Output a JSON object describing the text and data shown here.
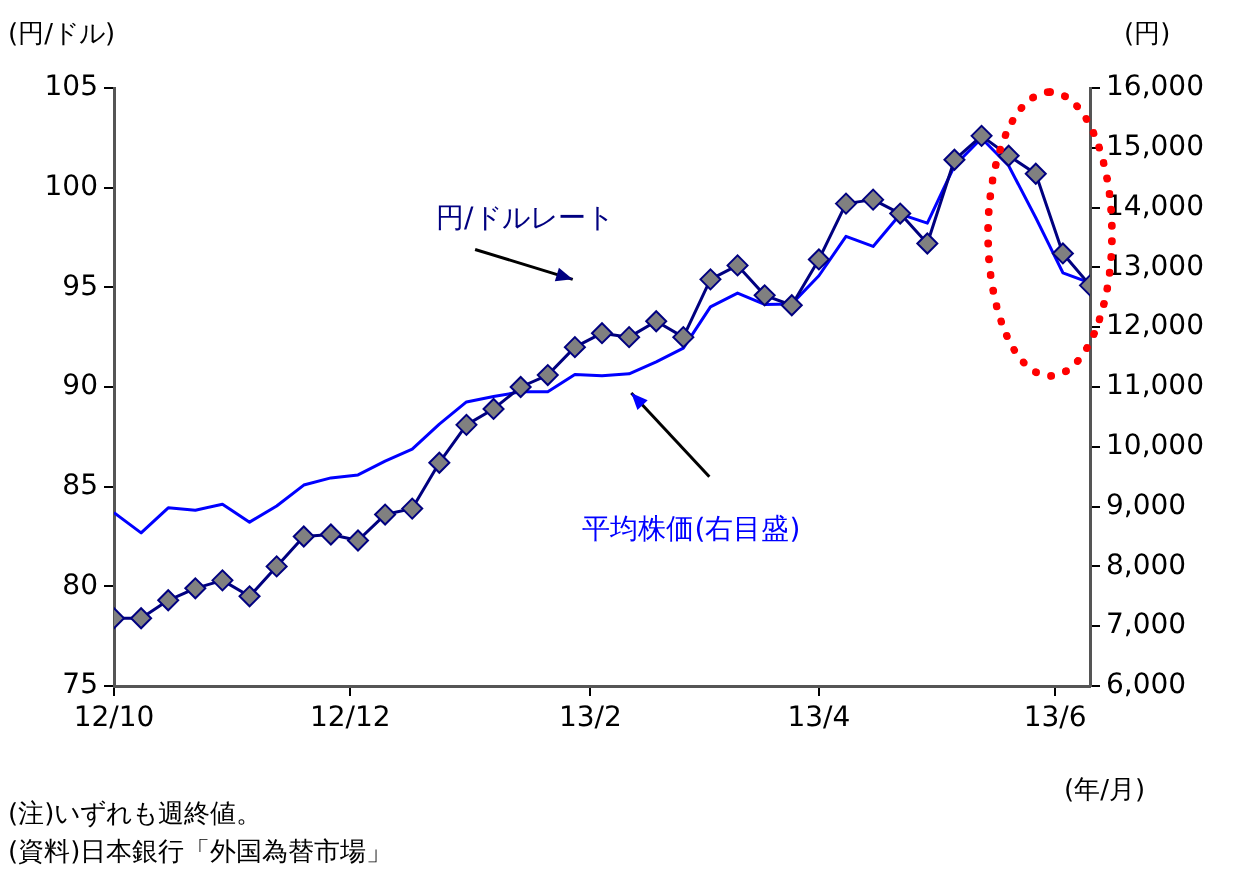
{
  "chart_data": {
    "type": "line",
    "ylabel": "(円/ドル)",
    "y2label": "(円)",
    "xlabel": "(年/月)",
    "annotations": [
      "(注)いずれも週終値。",
      "(資料)日本銀行「外国為替市場」"
    ],
    "x": [
      "2012-10-01",
      "2012-10-08",
      "2012-10-15",
      "2012-10-22",
      "2012-10-29",
      "2012-11-05",
      "2012-11-12",
      "2012-11-19",
      "2012-11-26",
      "2012-12-03",
      "2012-12-10",
      "2012-12-17",
      "2012-12-24",
      "2012-12-31",
      "2013-01-07",
      "2013-01-14",
      "2013-01-21",
      "2013-01-28",
      "2013-02-04",
      "2013-02-11",
      "2013-02-18",
      "2013-02-25",
      "2013-03-04",
      "2013-03-11",
      "2013-03-18",
      "2013-03-25",
      "2013-04-01",
      "2013-04-08",
      "2013-04-15",
      "2013-04-22",
      "2013-04-29",
      "2013-05-06",
      "2013-05-13",
      "2013-05-20",
      "2013-05-27",
      "2013-06-03",
      "2013-06-10"
    ],
    "series": [
      {
        "name": "円/ドルレート",
        "color": "#000080",
        "marker": "diamond",
        "values": [
          78.4,
          78.4,
          79.3,
          79.9,
          80.3,
          79.5,
          81.0,
          82.5,
          82.6,
          82.3,
          83.6,
          83.9,
          86.2,
          88.1,
          88.9,
          90.0,
          90.6,
          92.0,
          92.7,
          92.5,
          93.3,
          92.5,
          95.4,
          96.1,
          94.6,
          94.1,
          96.4,
          99.2,
          99.4,
          98.7,
          97.2,
          101.4,
          102.6,
          101.6,
          100.7,
          96.7,
          95.1
        ]
      },
      {
        "name": "平均株価(右目盛)",
        "color": "#0000ff",
        "axis": "y2",
        "marker": "none",
        "values": [
          8900,
          8560,
          8980,
          8940,
          9040,
          8740,
          9010,
          9360,
          9480,
          9530,
          9760,
          9960,
          10380,
          10750,
          10840,
          10920,
          10920,
          11210,
          11190,
          11220,
          11420,
          11650,
          12340,
          12570,
          12380,
          12390,
          12860,
          13520,
          13350,
          13890,
          13740,
          14700,
          15160,
          14700,
          13830,
          12910,
          12740
        ]
      }
    ],
    "xlim": [
      "2012-10-01",
      "2013-06-10"
    ],
    "xticks": [
      {
        "value": "2012-10-01",
        "label": "12/10"
      },
      {
        "value": "2012-12-01",
        "label": "12/12"
      },
      {
        "value": "2013-02-01",
        "label": "13/2"
      },
      {
        "value": "2013-04-01",
        "label": "13/4"
      },
      {
        "value": "2013-06-01",
        "label": "13/6"
      }
    ],
    "ylim": [
      75,
      105
    ],
    "yticks": [
      75,
      80,
      85,
      90,
      95,
      100,
      105
    ],
    "y2lim": [
      6000,
      16000
    ],
    "y2ticks": [
      {
        "value": 6000,
        "label": "6,000"
      },
      {
        "value": 7000,
        "label": "7,000"
      },
      {
        "value": 8000,
        "label": "8,000"
      },
      {
        "value": 9000,
        "label": "9,000"
      },
      {
        "value": 10000,
        "label": "10,000"
      },
      {
        "value": 11000,
        "label": "11,000"
      },
      {
        "value": 12000,
        "label": "12,000"
      },
      {
        "value": 13000,
        "label": "13,000"
      },
      {
        "value": 14000,
        "label": "14,000"
      },
      {
        "value": 15000,
        "label": "15,000"
      },
      {
        "value": 16000,
        "label": "16,000"
      }
    ],
    "grid": false,
    "legend": false
  }
}
